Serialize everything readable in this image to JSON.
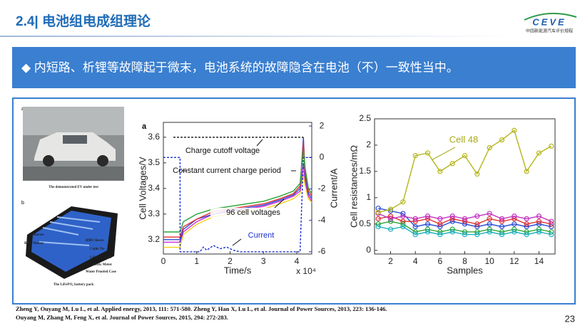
{
  "header": {
    "title": "2.4| 电池组电成组理论",
    "logo_text": "CEVE",
    "logo_subtitle": "中国新能源汽车评价规程"
  },
  "banner": "◆ 内短路、析锂等故障起于微末，电池系统的故障隐含在电池（不）一致性当中。",
  "figure": {
    "photo_label": "a",
    "photo_caption": "The demonstrated EV under test",
    "pack_label": "b",
    "pack_caption": "The LiFePO₄ battery pack",
    "pack_parts": [
      "Contactor",
      "BMS Master",
      "BMS Slaves",
      "Cable Tie",
      "LiFePO₄ Cells",
      "Electric Meter",
      "Water Proofed Case"
    ]
  },
  "charts": [
    {
      "type": "line",
      "panel_label": "a",
      "x_label": "Time/s",
      "x_multiplier": "x 10⁴",
      "y_label": "Cell Voltages/V",
      "y2_label": "Current/A",
      "xlim": [
        0,
        4.45
      ],
      "xticks": [
        0,
        1,
        2,
        3,
        4
      ],
      "ylim": [
        3.144,
        3.658
      ],
      "yticks": [
        3.2,
        3.3,
        3.4,
        3.5,
        3.6
      ],
      "y2lim": [
        -6.14,
        2.23
      ],
      "y2ticks": [
        2,
        0,
        -2,
        -4,
        -6
      ],
      "annotations": [
        "Charge cutoff voltage",
        "Constant current charge period",
        "96 cell voltages",
        "Current"
      ],
      "series": [
        {
          "color": "#f2d21a",
          "x": [
            0,
            0.45,
            0.5,
            0.6,
            1,
            1.5,
            2,
            2.5,
            3,
            3.5,
            3.9,
            4.1,
            4.2,
            4.25,
            4.35,
            4.45
          ],
          "values": [
            3.17,
            3.17,
            3.17,
            3.22,
            3.26,
            3.29,
            3.3,
            3.31,
            3.32,
            3.34,
            3.36,
            3.38,
            3.46,
            3.41,
            3.36,
            3.345
          ]
        },
        {
          "color": "#d12ad1",
          "x": [
            0,
            0.45,
            0.5,
            0.6,
            1,
            1.5,
            2,
            2.5,
            3,
            3.5,
            3.9,
            4.1,
            4.2,
            4.25,
            4.35,
            4.45
          ],
          "values": [
            3.19,
            3.19,
            3.19,
            3.23,
            3.27,
            3.3,
            3.31,
            3.32,
            3.33,
            3.35,
            3.37,
            3.39,
            3.5,
            3.43,
            3.37,
            3.35
          ]
        },
        {
          "color": "#2b4fd8",
          "x": [
            0,
            0.45,
            0.5,
            0.6,
            1,
            1.5,
            2,
            2.5,
            3,
            3.5,
            3.9,
            4.1,
            4.2,
            4.25,
            4.35,
            4.45
          ],
          "values": [
            3.2,
            3.2,
            3.2,
            3.24,
            3.28,
            3.3,
            3.315,
            3.325,
            3.335,
            3.355,
            3.375,
            3.4,
            3.6,
            3.45,
            3.38,
            3.36
          ]
        },
        {
          "color": "#e03030",
          "x": [
            0,
            0.45,
            0.5,
            0.6,
            1,
            1.5,
            2,
            2.5,
            3,
            3.5,
            3.9,
            4.1,
            4.2,
            4.25,
            4.35,
            4.45
          ],
          "values": [
            3.21,
            3.21,
            3.21,
            3.25,
            3.28,
            3.31,
            3.32,
            3.33,
            3.34,
            3.36,
            3.38,
            3.41,
            3.58,
            3.47,
            3.39,
            3.37
          ]
        },
        {
          "color": "#2aa53a",
          "x": [
            0,
            0.45,
            0.5,
            0.6,
            1,
            1.5,
            2,
            2.5,
            3,
            3.5,
            3.9,
            4.1,
            4.2,
            4.25,
            4.35,
            4.45
          ],
          "values": [
            3.23,
            3.23,
            3.23,
            3.27,
            3.3,
            3.32,
            3.33,
            3.34,
            3.35,
            3.37,
            3.39,
            3.42,
            3.55,
            3.48,
            3.4,
            3.38
          ]
        },
        {
          "color": "#111111",
          "dash": true,
          "x": [
            0.3,
            4.2
          ],
          "values": [
            3.6,
            3.6
          ]
        },
        {
          "color": "#1a2fd0",
          "dash": true,
          "axis": "y2",
          "x": [
            0,
            0.5,
            0.5,
            1.1,
            1.2,
            1.3,
            1.5,
            1.7,
            1.9,
            2.1,
            2.3,
            3.5,
            4.1,
            4.2,
            4.45
          ],
          "values": [
            0,
            0,
            -6,
            -6,
            -5.7,
            -5.9,
            -5.6,
            -5.8,
            -5.7,
            -5.9,
            -6,
            -6,
            -6,
            0,
            0
          ]
        }
      ]
    },
    {
      "type": "line",
      "markers": true,
      "x_label": "Samples",
      "y_label": "Cell resistances/mΩ",
      "xlim": [
        0.7,
        15.3
      ],
      "xticks": [
        2,
        4,
        6,
        8,
        10,
        12,
        14
      ],
      "ylim": [
        -0.07,
        2.5
      ],
      "yticks": [
        0,
        0.5,
        1,
        1.5,
        2,
        2.5
      ],
      "x": [
        1,
        2,
        3,
        4,
        5,
        6,
        7,
        8,
        9,
        10,
        11,
        12,
        13,
        14,
        15
      ],
      "series": [
        {
          "color": "#2b4fd8",
          "values": [
            0.8,
            0.75,
            0.7,
            0.45,
            0.5,
            0.45,
            0.55,
            0.5,
            0.45,
            0.5,
            0.45,
            0.5,
            0.45,
            0.5,
            0.45
          ]
        },
        {
          "color": "#e03030",
          "values": [
            0.6,
            0.65,
            0.55,
            0.55,
            0.6,
            0.5,
            0.6,
            0.55,
            0.5,
            0.6,
            0.55,
            0.6,
            0.5,
            0.55,
            0.5
          ]
        },
        {
          "color": "#2aa53a",
          "values": [
            0.5,
            0.55,
            0.5,
            0.35,
            0.4,
            0.35,
            0.4,
            0.35,
            0.35,
            0.4,
            0.35,
            0.4,
            0.35,
            0.4,
            0.35
          ]
        },
        {
          "color": "#c030c0",
          "values": [
            0.7,
            0.6,
            0.65,
            0.6,
            0.65,
            0.6,
            0.65,
            0.6,
            0.65,
            0.7,
            0.6,
            0.65,
            0.6,
            0.65,
            0.55
          ]
        },
        {
          "color": "#20b0c0",
          "values": [
            0.45,
            0.4,
            0.45,
            0.3,
            0.35,
            0.3,
            0.35,
            0.3,
            0.3,
            0.35,
            0.3,
            0.35,
            0.3,
            0.35,
            0.3
          ]
        },
        {
          "name": "Cell 48",
          "color": "#b5b51a",
          "values": [
            0.72,
            0.78,
            0.92,
            1.8,
            1.85,
            1.5,
            1.65,
            1.8,
            1.45,
            1.95,
            2.1,
            2.28,
            1.5,
            1.85,
            1.98
          ]
        }
      ]
    }
  ],
  "references": [
    "Zheng Y, Ouyang M, Lu L, et al. Applied energy, 2013, 111: 571-580. Zheng Y, Han X, Lu L, et al. Journal of Power Sources, 2013, 223: 136-146.",
    "Ouyang M, Zhang M, Feng X, et al. Journal of Power Sources, 2015, 294: 272-283."
  ],
  "page_number": "23"
}
